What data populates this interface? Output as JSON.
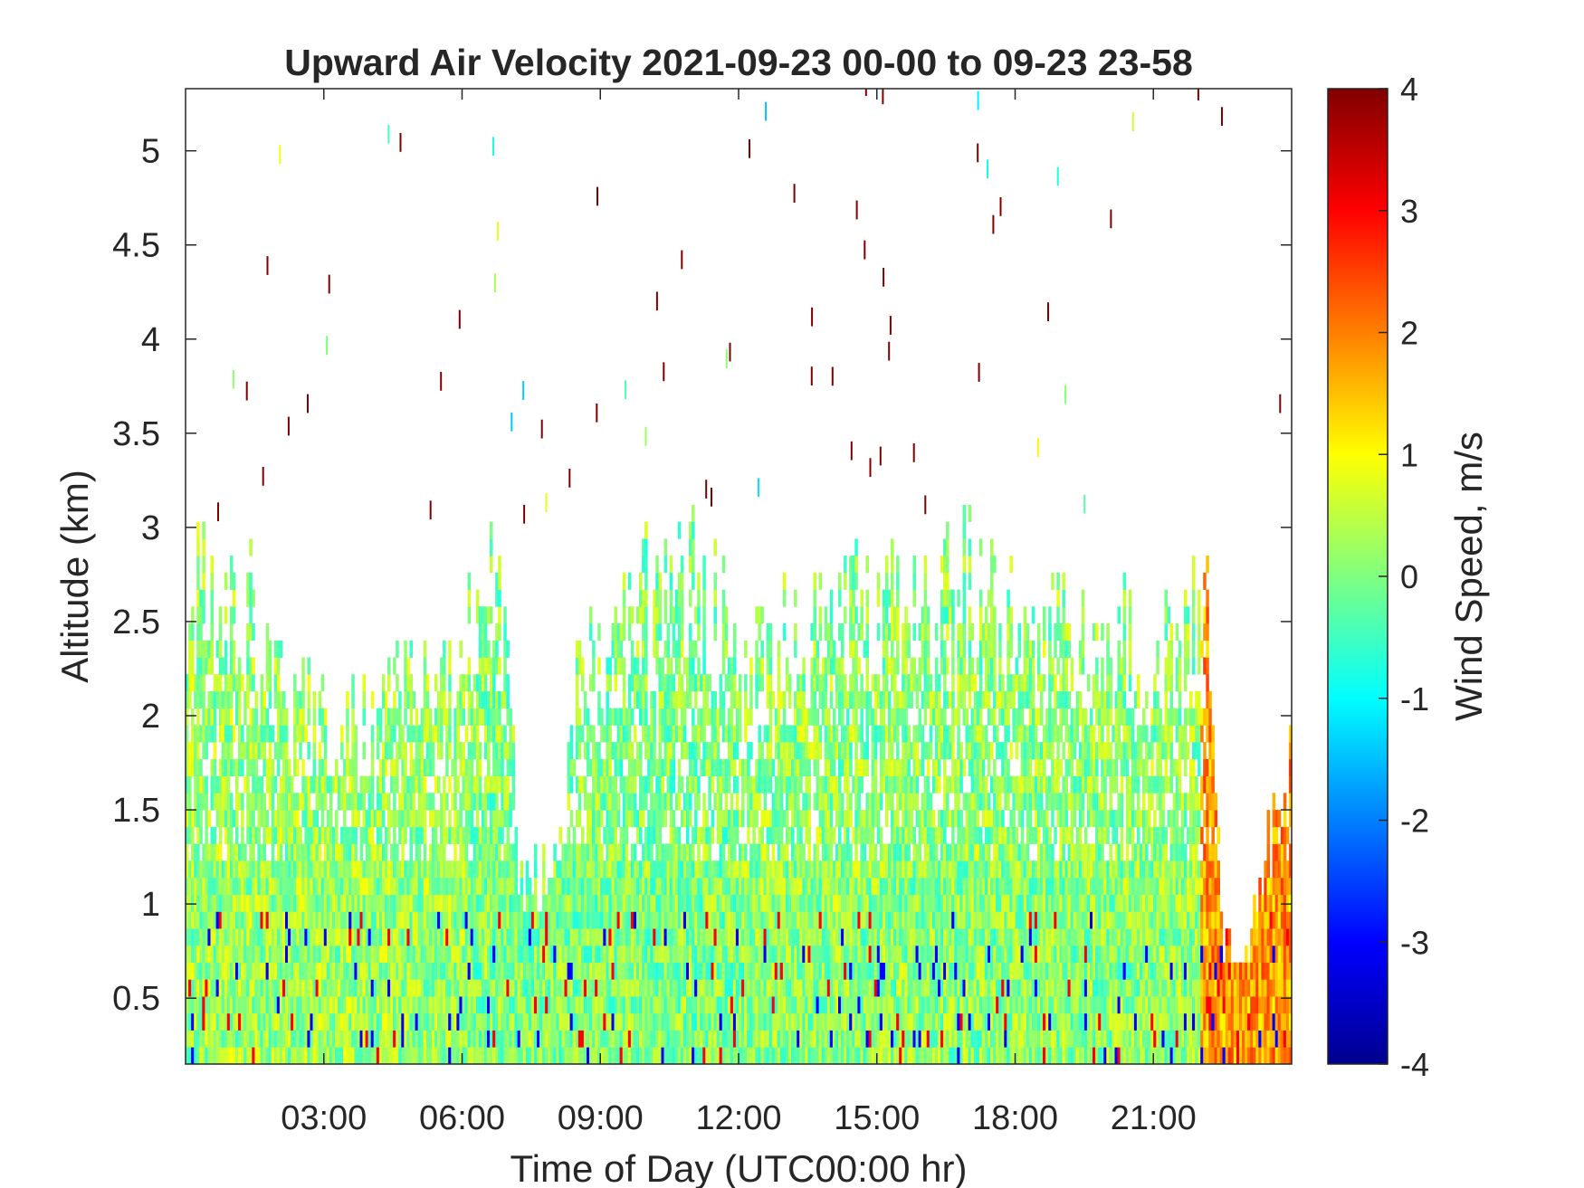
{
  "chart_data": {
    "type": "heatmap",
    "title": "Upward Air Velocity 2021-09-23 00-00 to 09-23 23-58",
    "xlabel": "Time of Day (UTC00:00 hr)",
    "ylabel": "Altitude (km)",
    "colorbar_label": "Wind Speed, m/s",
    "xlim": [
      0,
      24
    ],
    "ylim": [
      0.15,
      5.33
    ],
    "clim": [
      -4,
      4
    ],
    "colormap": "jet",
    "grid": false,
    "x_ticks": [
      {
        "value": 3,
        "label": "03:00"
      },
      {
        "value": 6,
        "label": "06:00"
      },
      {
        "value": 9,
        "label": "09:00"
      },
      {
        "value": 12,
        "label": "12:00"
      },
      {
        "value": 15,
        "label": "15:00"
      },
      {
        "value": 18,
        "label": "18:00"
      },
      {
        "value": 21,
        "label": "21:00"
      }
    ],
    "y_ticks": [
      {
        "value": 0.5,
        "label": "0.5"
      },
      {
        "value": 1,
        "label": "1"
      },
      {
        "value": 1.5,
        "label": "1.5"
      },
      {
        "value": 2,
        "label": "2"
      },
      {
        "value": 2.5,
        "label": "2.5"
      },
      {
        "value": 3,
        "label": "3"
      },
      {
        "value": 3.5,
        "label": "3.5"
      },
      {
        "value": 4,
        "label": "4"
      },
      {
        "value": 4.5,
        "label": "4.5"
      },
      {
        "value": 5,
        "label": "5"
      }
    ],
    "colorbar_ticks": [
      {
        "value": 4,
        "label": "4"
      },
      {
        "value": 3,
        "label": "3"
      },
      {
        "value": 2,
        "label": "2"
      },
      {
        "value": 1,
        "label": "1"
      },
      {
        "value": 0,
        "label": "0"
      },
      {
        "value": -1,
        "label": "-1"
      },
      {
        "value": -2,
        "label": "-2"
      },
      {
        "value": -3,
        "label": "-3"
      },
      {
        "value": -4,
        "label": "-4"
      }
    ],
    "echo_top_km": [
      [
        0,
        2.9
      ],
      [
        0.5,
        2.8
      ],
      [
        1,
        2.7
      ],
      [
        1.5,
        2.6
      ],
      [
        2.5,
        2.1
      ],
      [
        3.2,
        2.0
      ],
      [
        4,
        2.1
      ],
      [
        5,
        2.2
      ],
      [
        5.8,
        2.2
      ],
      [
        6.3,
        2.8
      ],
      [
        7,
        2.7
      ],
      [
        7.2,
        1.2
      ],
      [
        8,
        1.2
      ],
      [
        8.5,
        2.3
      ],
      [
        10,
        2.7
      ],
      [
        11,
        3.0
      ],
      [
        12,
        2.3
      ],
      [
        14,
        2.7
      ],
      [
        16,
        2.7
      ],
      [
        17,
        2.8
      ],
      [
        18,
        2.5
      ],
      [
        19.5,
        2.6
      ],
      [
        21,
        2.5
      ],
      [
        22.2,
        2.6
      ],
      [
        22.5,
        0.8
      ],
      [
        23,
        0.7
      ],
      [
        24,
        2.0
      ]
    ],
    "mean_velocity_m_s": [
      {
        "hour_range": [
          0,
          6
        ],
        "value": 0.2
      },
      {
        "hour_range": [
          6,
          12
        ],
        "value": 0.0
      },
      {
        "hour_range": [
          12,
          22
        ],
        "value": 0.1
      },
      {
        "hour_range": [
          22,
          24
        ],
        "value": 1.8
      }
    ]
  }
}
